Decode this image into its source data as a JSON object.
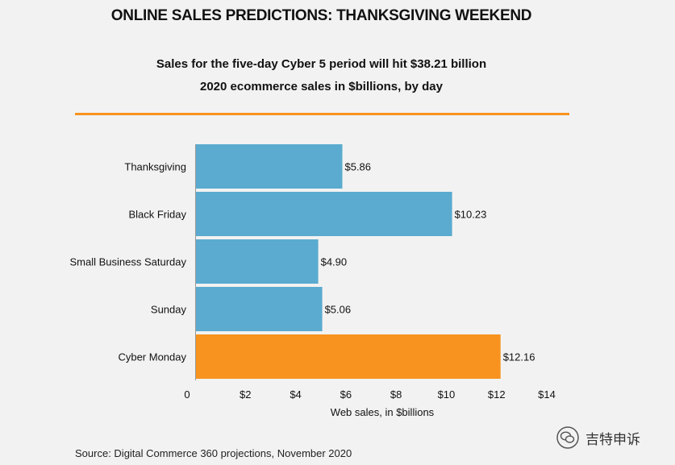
{
  "title": "ONLINE SALES PREDICTIONS: THANKSGIVING WEEKEND",
  "subtitle_line1": "Sales for the five-day Cyber 5 period will hit $38.21 billion",
  "subtitle_line2": "2020 ecommerce sales in $billions, by day",
  "source": "Source: Digital Commerce 360 projections, November 2020",
  "watermark_text": "吉特申诉",
  "colors": {
    "bar": "#5aabcf",
    "highlight": "#f7931e",
    "rule": "#f7931e"
  },
  "chart_data": {
    "type": "bar",
    "orientation": "horizontal",
    "categories": [
      "Thanksgiving",
      "Black Friday",
      "Small Business Saturday",
      "Sunday",
      "Cyber Monday"
    ],
    "values": [
      5.86,
      10.23,
      4.9,
      5.06,
      12.16
    ],
    "value_labels": [
      "$5.86",
      "$10.23",
      "$4.90",
      "$5.06",
      "$12.16"
    ],
    "highlight_index": 4,
    "xlabel": "Web sales, in $billions",
    "xlim": [
      0,
      14
    ],
    "xticks": [
      0,
      2,
      4,
      6,
      8,
      10,
      12,
      14
    ],
    "xtick_labels": [
      "0",
      "$2",
      "$4",
      "$6",
      "$8",
      "$10",
      "$12",
      "$14"
    ],
    "grid": false
  }
}
